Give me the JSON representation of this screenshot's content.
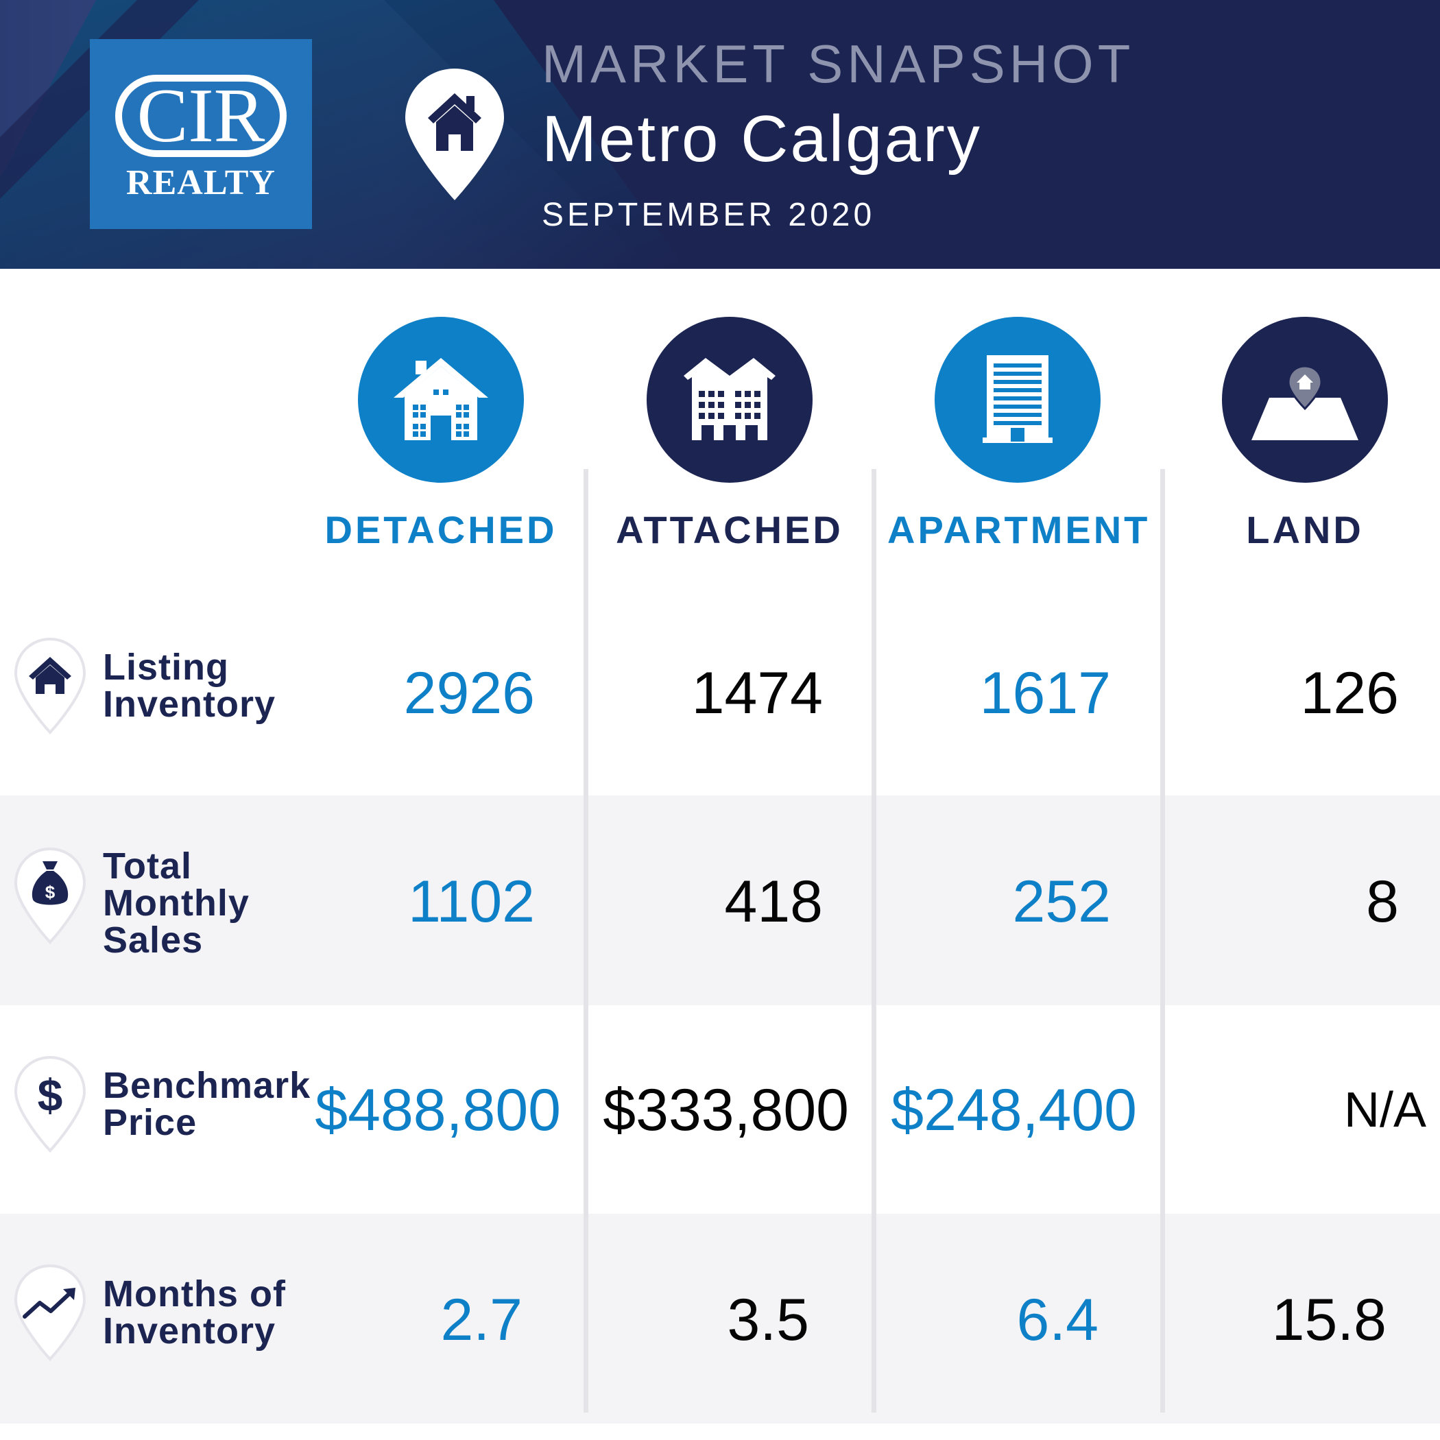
{
  "header": {
    "logo_main": "CIR",
    "logo_sub": "REALTY",
    "kicker": "MARKET SNAPSHOT",
    "title": "Metro Calgary",
    "date": "SEPTEMBER 2020",
    "colors": {
      "navy": "#1c2452",
      "logo_blue": "#2374bb",
      "accent_blue": "#0e80c7"
    }
  },
  "categories": [
    {
      "label": "DETACHED",
      "icon": "detached-house-icon",
      "color": "#0e80c7"
    },
    {
      "label": "ATTACHED",
      "icon": "attached-townhouse-icon",
      "color": "#1c2452"
    },
    {
      "label": "APARTMENT",
      "icon": "apartment-building-icon",
      "color": "#0e80c7"
    },
    {
      "label": "LAND",
      "icon": "land-plot-icon",
      "color": "#1c2452"
    }
  ],
  "rows": [
    {
      "label_lines": [
        "Listing",
        "Inventory"
      ],
      "icon": "house-icon",
      "values": [
        "2926",
        "1474",
        "1617",
        "126"
      ]
    },
    {
      "label_lines": [
        "Total",
        "Monthly",
        "Sales"
      ],
      "icon": "money-bag-icon",
      "values": [
        "1102",
        "418",
        "252",
        "8"
      ]
    },
    {
      "label_lines": [
        "Benchmark",
        "Price"
      ],
      "icon": "dollar-sign-icon",
      "values": [
        "$488,800",
        "$333,800",
        "$248,400",
        "N/A"
      ]
    },
    {
      "label_lines": [
        "Months of",
        "Inventory"
      ],
      "icon": "trend-up-icon",
      "values": [
        "2.7",
        "3.5",
        "6.4",
        "15.8"
      ]
    }
  ]
}
